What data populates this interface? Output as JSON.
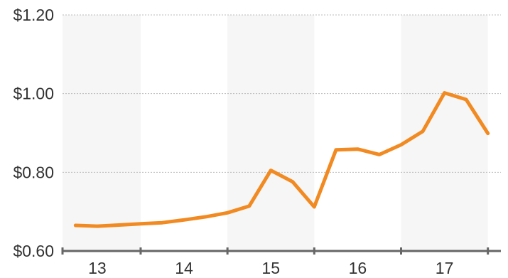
{
  "colors": {
    "line": "#F28A22",
    "band": "#F6F6F6",
    "grid": "#BBBBBB",
    "axis": "#666666",
    "text": "#333333"
  },
  "chart_data": {
    "type": "line",
    "title": "",
    "xlabel": "",
    "ylabel": "",
    "ylim": [
      0.6,
      1.2
    ],
    "xlim": [
      12.6,
      17.65
    ],
    "yticks": [
      {
        "value": 0.6,
        "label": "$0.60"
      },
      {
        "value": 0.8,
        "label": "$0.80"
      },
      {
        "value": 1.0,
        "label": "$1.00"
      },
      {
        "value": 1.2,
        "label": "$1.20"
      }
    ],
    "xticks": [
      {
        "value": 13,
        "label": "13"
      },
      {
        "value": 14,
        "label": "14"
      },
      {
        "value": 15,
        "label": "15"
      },
      {
        "value": 16,
        "label": "16"
      },
      {
        "value": 17,
        "label": "17"
      }
    ],
    "shaded_years": [
      13,
      15,
      17
    ],
    "grid": true,
    "series": [
      {
        "x": [
          12.75,
          13.0,
          13.25,
          13.5,
          13.75,
          14.0,
          14.25,
          14.5,
          14.75,
          15.0,
          15.25,
          15.5,
          15.75,
          16.0,
          16.25,
          16.5,
          16.75,
          17.0,
          17.25,
          17.5
        ],
        "values": [
          0.665,
          0.663,
          0.666,
          0.669,
          0.672,
          0.679,
          0.687,
          0.697,
          0.714,
          0.805,
          0.776,
          0.712,
          0.857,
          0.859,
          0.845,
          0.87,
          0.904,
          1.002,
          0.985,
          0.899
        ]
      }
    ]
  }
}
